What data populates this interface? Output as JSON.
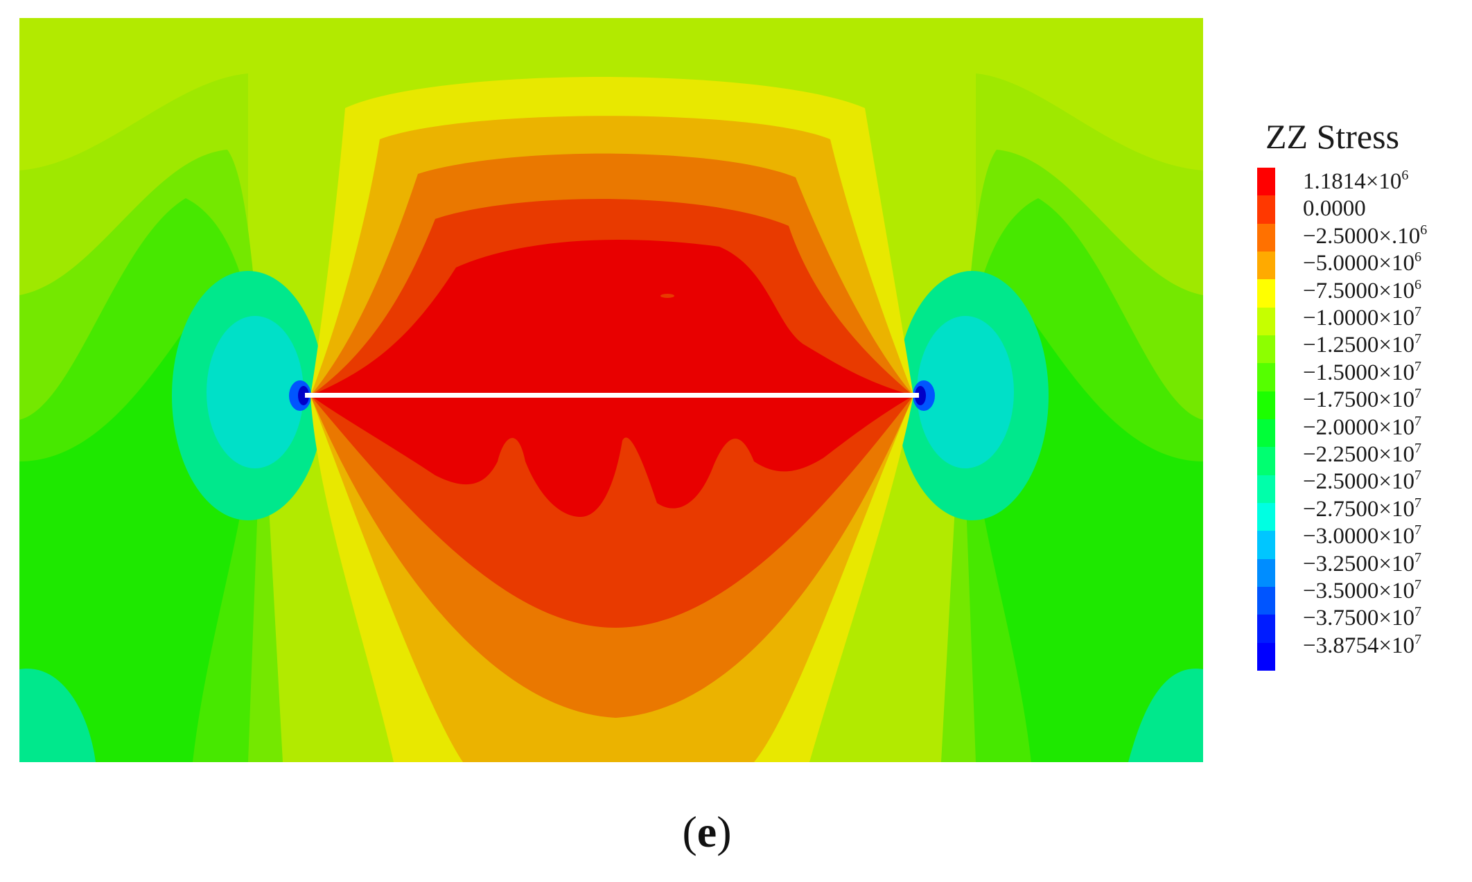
{
  "figure": {
    "panel_letter": "e",
    "paren_open": "(",
    "paren_close": ")"
  },
  "legend": {
    "title": "ZZ Stress",
    "entries": [
      {
        "mantissa": "1.1814",
        "times": "×",
        "base": "10",
        "exp": "6",
        "color": "#ff0000"
      },
      {
        "mantissa": "0.0000",
        "times": "",
        "base": "",
        "exp": "",
        "color": "#ff3800"
      },
      {
        "mantissa": "−2.5000",
        "times": "×.",
        "base": "10",
        "exp": "6",
        "color": "#ff7100"
      },
      {
        "mantissa": "−5.0000",
        "times": "×",
        "base": "10",
        "exp": "6",
        "color": "#ffaa00"
      },
      {
        "mantissa": "−7.5000",
        "times": "×",
        "base": "10",
        "exp": "6",
        "color": "#ffff00"
      },
      {
        "mantissa": "−1.0000",
        "times": "×",
        "base": "10",
        "exp": "7",
        "color": "#c6ff00"
      },
      {
        "mantissa": "−1.2500",
        "times": "×",
        "base": "10",
        "exp": "7",
        "color": "#8dff00"
      },
      {
        "mantissa": "−1.5000",
        "times": "×",
        "base": "10",
        "exp": "7",
        "color": "#55ff00"
      },
      {
        "mantissa": "−1.7500",
        "times": "×",
        "base": "10",
        "exp": "7",
        "color": "#1cff00"
      },
      {
        "mantissa": "−2.0000",
        "times": "×",
        "base": "10",
        "exp": "7",
        "color": "#00ff38"
      },
      {
        "mantissa": "−2.2500",
        "times": "×",
        "base": "10",
        "exp": "7",
        "color": "#00ff71"
      },
      {
        "mantissa": "−2.5000",
        "times": "×",
        "base": "10",
        "exp": "7",
        "color": "#00ffaa"
      },
      {
        "mantissa": "−2.7500",
        "times": "×",
        "base": "10",
        "exp": "7",
        "color": "#00ffe2"
      },
      {
        "mantissa": "−3.0000",
        "times": "×",
        "base": "10",
        "exp": "7",
        "color": "#00c6ff"
      },
      {
        "mantissa": "−3.2500",
        "times": "×",
        "base": "10",
        "exp": "7",
        "color": "#008dff"
      },
      {
        "mantissa": "−3.5000",
        "times": "×",
        "base": "10",
        "exp": "7",
        "color": "#0055ff"
      },
      {
        "mantissa": "−3.7500",
        "times": "×",
        "base": "10",
        "exp": "7",
        "color": "#001cff"
      },
      {
        "mantissa": "−3.8754",
        "times": "×",
        "base": "10",
        "exp": "7",
        "color": "#0000ff"
      }
    ]
  },
  "plot_colors": {
    "background": "#b2ea00",
    "far_field": "#1ee800",
    "band_green_a": "#47e800",
    "band_green_b": "#74e800",
    "band_green_c": "#9fe800",
    "band_yellow": "#e8e800",
    "band_gold": "#ebb300",
    "band_orange": "#ea7800",
    "band_red_orange": "#e83a00",
    "core_red": "#e80000",
    "tip_teal": "#00e88c",
    "tip_cyan": "#00e0c8",
    "tip_blue": "#0055ff",
    "tip_dark": "#0000c8",
    "crack_line": "#ffffff"
  }
}
